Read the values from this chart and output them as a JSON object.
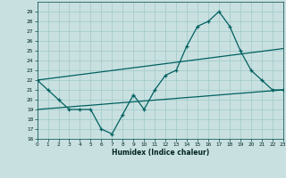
{
  "xlabel": "Humidex (Indice chaleur)",
  "bg_color": "#c8e0e0",
  "grid_color": "#a0c8c8",
  "line_color": "#006060",
  "x": [
    0,
    1,
    2,
    3,
    4,
    5,
    6,
    7,
    8,
    9,
    10,
    11,
    12,
    13,
    14,
    15,
    16,
    17,
    18,
    19,
    20,
    21,
    22,
    23
  ],
  "y_main": [
    22,
    21,
    20,
    19,
    19,
    19,
    17,
    16.5,
    18.5,
    20.5,
    19,
    21,
    22.5,
    23,
    25.5,
    27.5,
    28,
    29,
    27.5,
    25,
    23,
    22,
    21,
    21
  ],
  "y_upper": [
    22.0,
    22.14,
    22.28,
    22.42,
    22.56,
    22.7,
    22.84,
    22.98,
    23.12,
    23.26,
    23.4,
    23.54,
    23.68,
    23.82,
    23.96,
    24.1,
    24.24,
    24.38,
    24.52,
    24.66,
    24.8,
    24.94,
    25.08,
    25.22
  ],
  "y_lower": [
    19.0,
    19.09,
    19.17,
    19.26,
    19.35,
    19.43,
    19.52,
    19.61,
    19.7,
    19.78,
    19.87,
    19.96,
    20.04,
    20.13,
    20.22,
    20.3,
    20.39,
    20.48,
    20.57,
    20.65,
    20.74,
    20.83,
    20.91,
    21.0
  ],
  "ylim": [
    16,
    30
  ],
  "xlim": [
    0,
    23
  ],
  "yticks": [
    16,
    17,
    18,
    19,
    20,
    21,
    22,
    23,
    24,
    25,
    26,
    27,
    28,
    29
  ],
  "xticks": [
    0,
    1,
    2,
    3,
    4,
    5,
    6,
    7,
    8,
    9,
    10,
    11,
    12,
    13,
    14,
    15,
    16,
    17,
    18,
    19,
    20,
    21,
    22,
    23
  ]
}
